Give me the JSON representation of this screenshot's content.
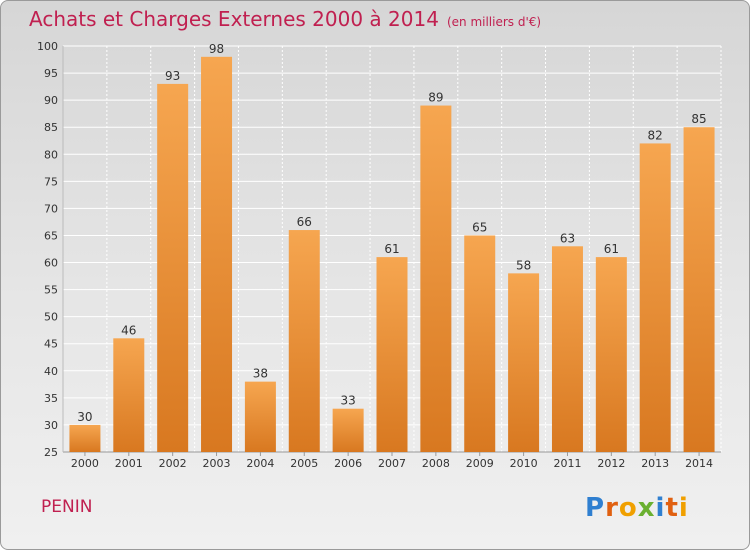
{
  "title": "Achats et Charges Externes 2000 à 2014",
  "subtitle": "(en milliers d'€)",
  "commune": "PENIN",
  "logo_text": "Proxiti",
  "colors": {
    "title": "#c02050",
    "bar_light": "#f6a650",
    "bar_dark": "#d87820",
    "grid": "#ffffff",
    "axis_text": "#333333"
  },
  "chart_data": {
    "type": "bar",
    "title": "Achats et Charges Externes 2000 à 2014",
    "subtitle": "(en milliers d'€)",
    "categories": [
      "2000",
      "2001",
      "2002",
      "2003",
      "2004",
      "2005",
      "2006",
      "2007",
      "2008",
      "2009",
      "2010",
      "2011",
      "2012",
      "2013",
      "2014"
    ],
    "values": [
      30,
      46,
      93,
      98,
      38,
      66,
      33,
      61,
      89,
      65,
      58,
      63,
      61,
      82,
      85
    ],
    "ylim": [
      25,
      100
    ],
    "yticks": [
      25,
      30,
      35,
      40,
      45,
      50,
      55,
      60,
      65,
      70,
      75,
      80,
      85,
      90,
      95,
      100
    ],
    "grid": true,
    "data_labels": true
  }
}
